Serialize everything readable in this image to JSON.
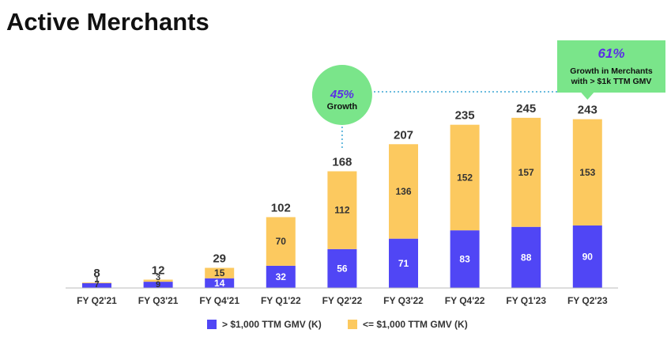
{
  "page": {
    "title": "Active Merchants"
  },
  "chart_data": {
    "type": "bar",
    "stacked": true,
    "title": "Active Merchants",
    "categories": [
      "FY Q2'21",
      "FY Q3'21",
      "FY Q4'21",
      "FY Q1'22",
      "FY Q2'22",
      "FY Q3'22",
      "FY Q4'22",
      "FY Q1'23",
      "FY Q2'23"
    ],
    "series": [
      {
        "name": "> $1,000 TTM GMV (K)",
        "color": "#5046f5",
        "values": [
          7,
          9,
          14,
          32,
          56,
          71,
          83,
          88,
          90
        ]
      },
      {
        "name": "<= $1,000 TTM GMV (K)",
        "color": "#fcc95f",
        "values": [
          1,
          3,
          15,
          70,
          112,
          136,
          152,
          157,
          153
        ]
      }
    ],
    "totals": [
      8,
      12,
      29,
      102,
      168,
      207,
      235,
      245,
      243
    ],
    "ylim": [
      0,
      250
    ],
    "xlabel": "",
    "ylabel": "",
    "legend_position": "bottom-center",
    "annotations": [
      {
        "value": "45%",
        "text": "Growth",
        "category": "FY Q2'22",
        "shape": "circle",
        "color": "#7ae58a"
      },
      {
        "value": "61%",
        "text_lines": [
          "Growth in Merchants",
          "with > $1k TTM GMV"
        ],
        "category": "FY Q2'23",
        "shape": "callout",
        "color": "#7ae58a"
      }
    ]
  }
}
